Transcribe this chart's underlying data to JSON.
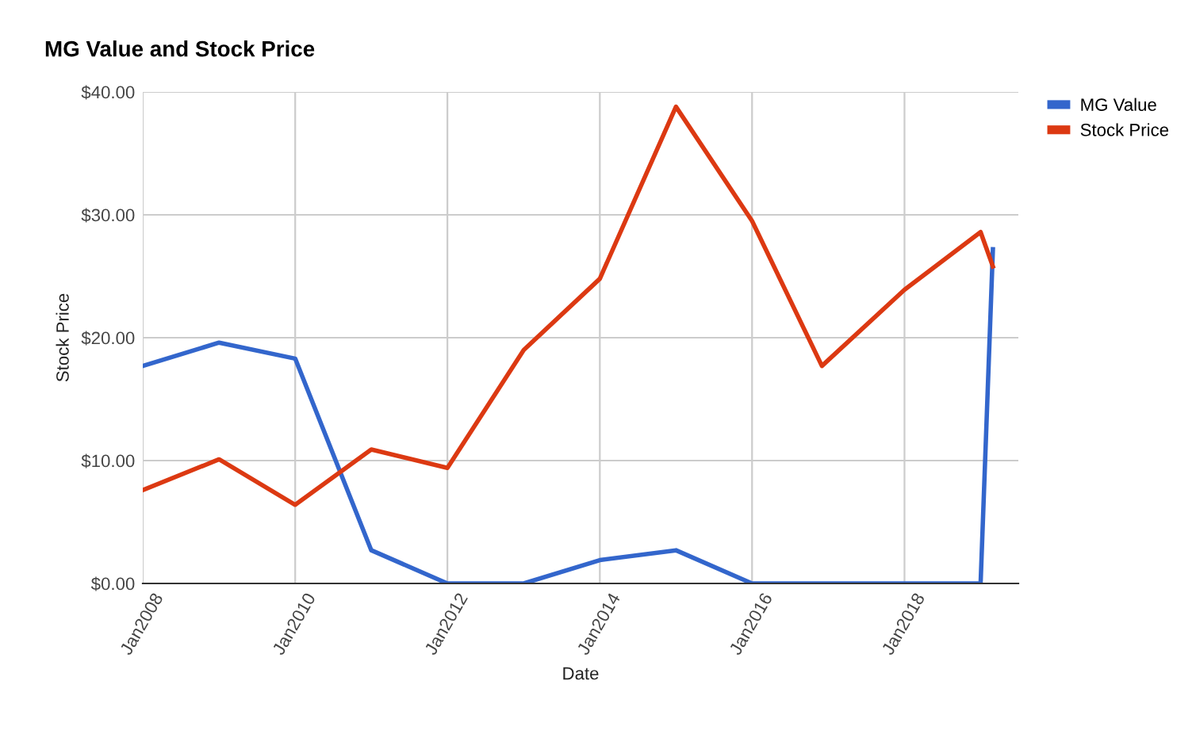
{
  "chart_data": {
    "type": "line",
    "title": "MG Value and Stock Price",
    "xlabel": "Date",
    "ylabel": "Stock Price",
    "x": [
      "2008-01",
      "2009-01",
      "2010-01",
      "2011-01",
      "2012-01",
      "2013-01",
      "2014-01",
      "2015-01",
      "2016-01",
      "2016-12",
      "2018-01",
      "2019-01",
      "2019-03"
    ],
    "series": [
      {
        "name": "MG Value",
        "color": "#3366cc",
        "values": [
          17.7,
          19.6,
          18.3,
          2.7,
          0,
          0,
          1.9,
          2.7,
          0,
          0,
          0,
          0,
          27.2
        ]
      },
      {
        "name": "Stock Price",
        "color": "#dc3912",
        "values": [
          7.6,
          10.1,
          6.4,
          10.9,
          9.4,
          19.0,
          24.8,
          38.8,
          29.5,
          17.7,
          23.9,
          28.6,
          25.8
        ]
      }
    ],
    "xlim": [
      "2008-01",
      "2019-07"
    ],
    "xticks": [
      {
        "value": "2008-01",
        "label": "Jan2008"
      },
      {
        "value": "2010-01",
        "label": "Jan2010"
      },
      {
        "value": "2012-01",
        "label": "Jan2012"
      },
      {
        "value": "2014-01",
        "label": "Jan2014"
      },
      {
        "value": "2016-01",
        "label": "Jan2016"
      },
      {
        "value": "2018-01",
        "label": "Jan2018"
      }
    ],
    "ylim": [
      0,
      40
    ],
    "yticks": [
      {
        "value": 0,
        "label": "$0.00"
      },
      {
        "value": 10,
        "label": "$10.00"
      },
      {
        "value": 20,
        "label": "$20.00"
      },
      {
        "value": 30,
        "label": "$30.00"
      },
      {
        "value": 40,
        "label": "$40.00"
      }
    ],
    "grid": true,
    "legend": "top right",
    "marker": "none",
    "line_style": "solid"
  }
}
